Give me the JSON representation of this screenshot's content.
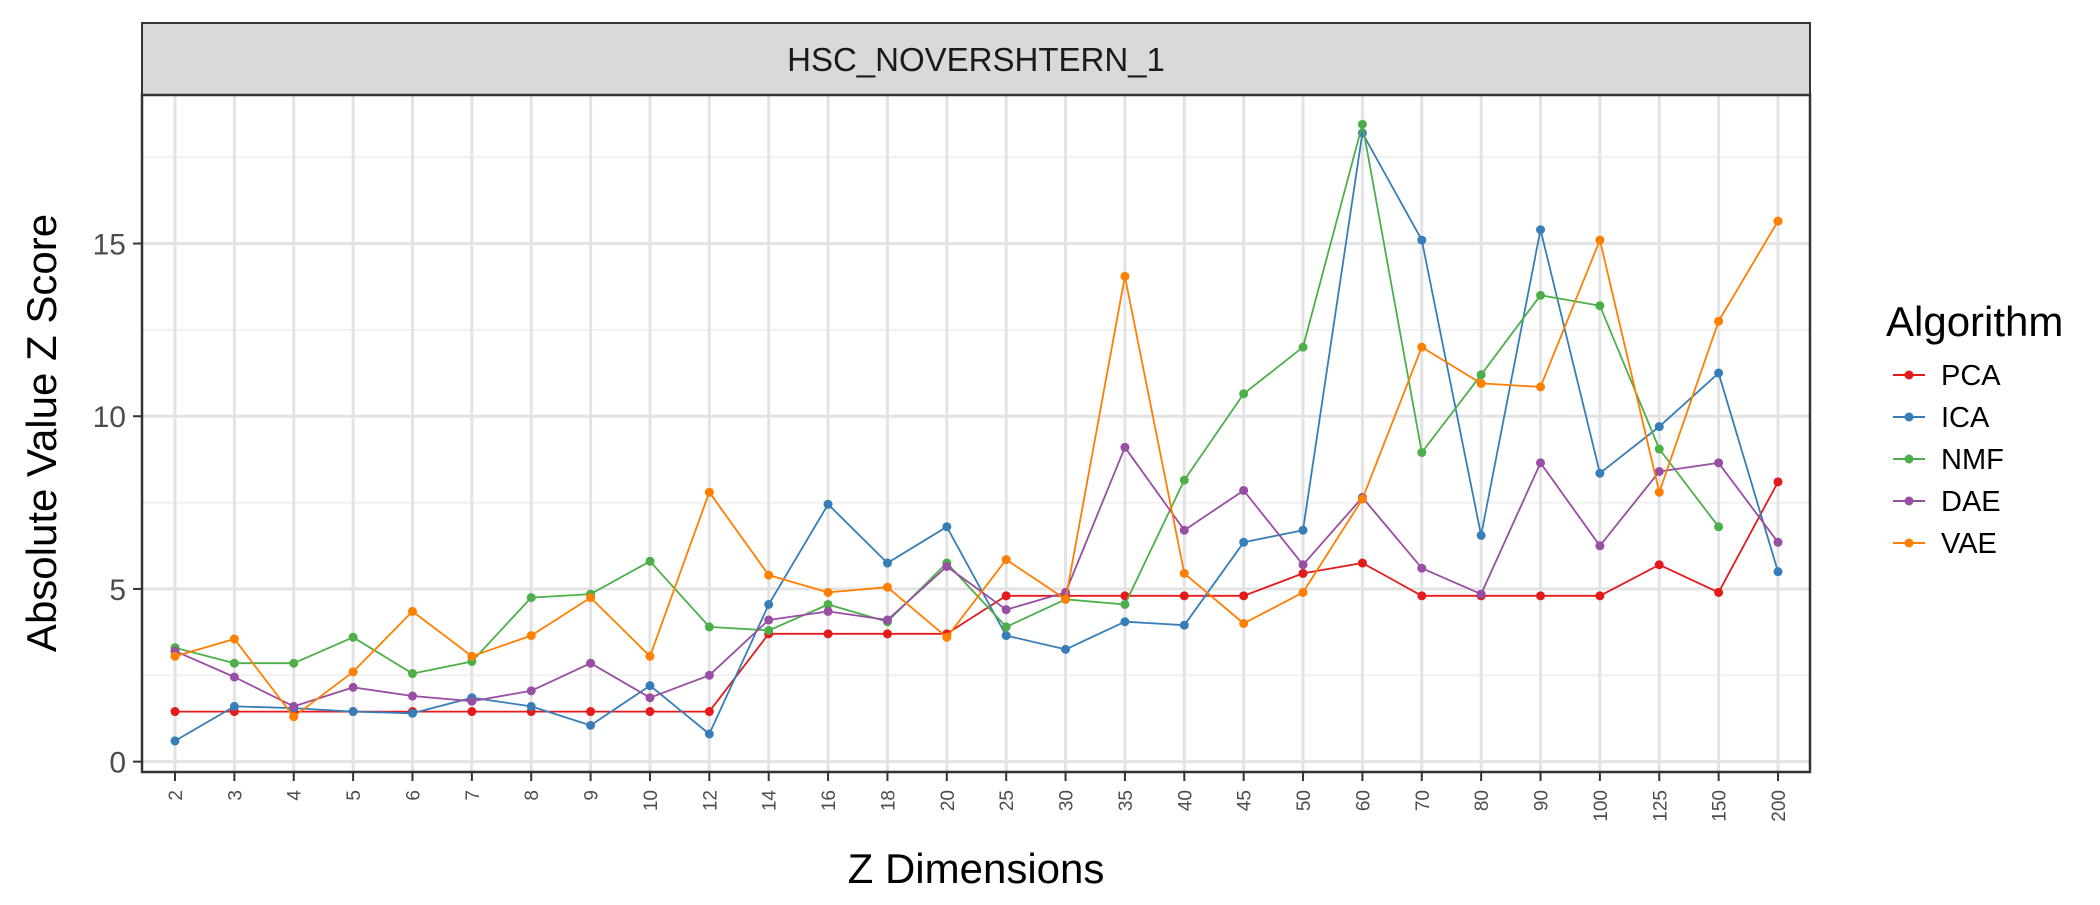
{
  "chart_data": {
    "type": "line",
    "title": "HSC_NOVERSHTERN_1",
    "xlabel": "Z Dimensions",
    "ylabel": "Absolute Value Z Score",
    "categories": [
      "2",
      "3",
      "4",
      "5",
      "6",
      "7",
      "8",
      "9",
      "10",
      "12",
      "14",
      "16",
      "18",
      "20",
      "25",
      "30",
      "35",
      "40",
      "45",
      "50",
      "60",
      "70",
      "80",
      "90",
      "100",
      "125",
      "150",
      "200"
    ],
    "yticks": [
      0,
      5,
      10,
      15
    ],
    "ylim": [
      -0.3,
      19.3
    ],
    "grid": true,
    "legend": {
      "title": "Algorithm",
      "placement": "right"
    },
    "series": [
      {
        "name": "PCA",
        "color": "#e41a1c",
        "values": [
          1.45,
          1.45,
          1.45,
          1.45,
          1.45,
          1.45,
          1.45,
          1.45,
          1.45,
          1.45,
          3.7,
          3.7,
          3.7,
          3.7,
          4.8,
          4.8,
          4.8,
          4.8,
          4.8,
          5.45,
          5.75,
          4.8,
          4.8,
          4.8,
          4.8,
          5.7,
          4.9,
          8.1
        ]
      },
      {
        "name": "ICA",
        "color": "#377eb8",
        "values": [
          0.6,
          1.6,
          1.55,
          1.45,
          1.4,
          1.85,
          1.6,
          1.05,
          2.2,
          0.8,
          4.55,
          7.45,
          5.75,
          6.8,
          3.65,
          3.25,
          4.05,
          3.95,
          6.35,
          6.7,
          18.2,
          15.1,
          6.55,
          15.4,
          8.35,
          9.7,
          11.25,
          5.5
        ]
      },
      {
        "name": "NMF",
        "color": "#4daf4a",
        "values": [
          3.3,
          2.85,
          2.85,
          3.6,
          2.55,
          2.9,
          4.75,
          4.85,
          5.8,
          3.9,
          3.8,
          4.55,
          4.05,
          5.75,
          3.9,
          4.7,
          4.55,
          8.15,
          10.65,
          12.0,
          18.45,
          8.95,
          11.2,
          13.5,
          13.2,
          9.05,
          6.8,
          null
        ]
      },
      {
        "name": "DAE",
        "color": "#984ea3",
        "values": [
          3.2,
          2.45,
          1.6,
          2.15,
          1.9,
          1.75,
          2.05,
          2.85,
          1.85,
          2.5,
          4.1,
          4.35,
          4.1,
          5.65,
          4.4,
          4.9,
          9.1,
          6.7,
          7.85,
          5.7,
          7.65,
          5.6,
          4.85,
          8.65,
          6.25,
          8.4,
          8.65,
          6.35
        ]
      },
      {
        "name": "VAE",
        "color": "#ff7f00",
        "values": [
          3.05,
          3.55,
          1.3,
          2.6,
          4.35,
          3.05,
          3.65,
          4.75,
          3.05,
          7.8,
          5.4,
          4.9,
          5.05,
          3.6,
          5.85,
          4.7,
          14.05,
          5.45,
          4.0,
          4.9,
          7.6,
          12.0,
          10.95,
          10.85,
          15.1,
          7.8,
          12.75,
          15.65
        ]
      }
    ]
  }
}
